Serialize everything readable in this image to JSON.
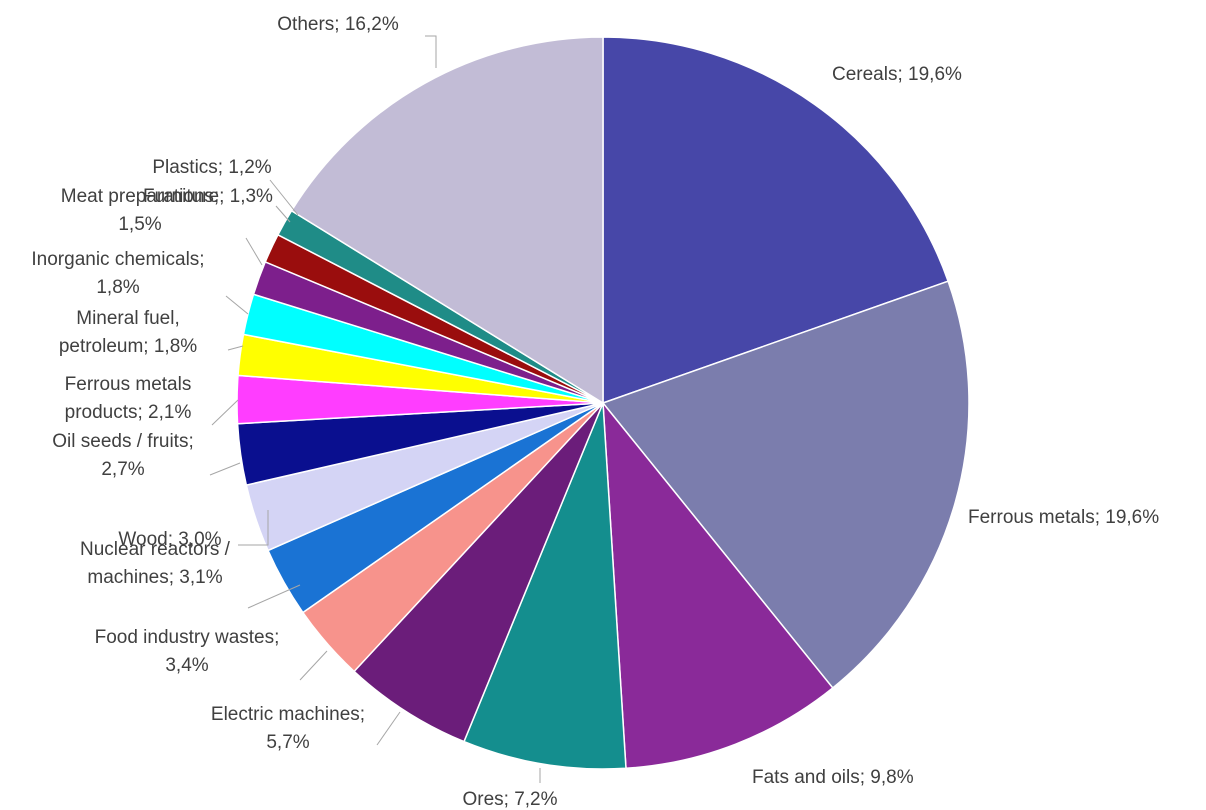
{
  "chart_data": {
    "type": "pie",
    "title": "",
    "slices": [
      {
        "name": "Cereals",
        "value": 19.6,
        "label": [
          "Cereals; 19,6%"
        ],
        "color": "#4747a8"
      },
      {
        "name": "Ferrous metals",
        "value": 19.6,
        "label": [
          "Ferrous metals; 19,6%"
        ],
        "color": "#7b7dad"
      },
      {
        "name": "Fats and oils",
        "value": 9.8,
        "label": [
          "Fats and oils; 9,8%"
        ],
        "color": "#8a2a99"
      },
      {
        "name": "Ores",
        "value": 7.2,
        "label": [
          "Ores; 7,2%"
        ],
        "color": "#148e8e"
      },
      {
        "name": "Electric machines",
        "value": 5.7,
        "label": [
          "Electric machines;",
          "5,7%"
        ],
        "color": "#6b1d7a"
      },
      {
        "name": "Food industry wastes",
        "value": 3.4,
        "label": [
          "Food industry wastes;",
          "3,4%"
        ],
        "color": "#f7938c"
      },
      {
        "name": "Nuclear reactors / machines",
        "value": 3.1,
        "label": [
          "Nuclear reactors /",
          "machines; 3,1%"
        ],
        "color": "#1a73d4"
      },
      {
        "name": "Wood",
        "value": 3.0,
        "label": [
          "Wood; 3,0%"
        ],
        "color": "#d4d4f5"
      },
      {
        "name": "Oil seeds / fruits",
        "value": 2.7,
        "label": [
          "Oil seeds  / fruits;",
          "2,7%"
        ],
        "color": "#0a0f8f"
      },
      {
        "name": "Ferrous metals products",
        "value": 2.1,
        "label": [
          "Ferrous metals",
          "products; 2,1%"
        ],
        "color": "#ff3dff"
      },
      {
        "name": "Mineral fuel, petroleum",
        "value": 1.8,
        "label": [
          "Mineral fuel,",
          "petroleum; 1,8%"
        ],
        "color": "#ffff00"
      },
      {
        "name": "Inorganic chemicals",
        "value": 1.8,
        "label": [
          "Inorganic chemicals;",
          "1,8%"
        ],
        "color": "#00ffff"
      },
      {
        "name": "Meat preparations",
        "value": 1.5,
        "label": [
          "Meat preparations;",
          "1,5%"
        ],
        "color": "#7d1f8c"
      },
      {
        "name": "Furniture",
        "value": 1.3,
        "label": [
          "Furniture; 1,3%"
        ],
        "color": "#9a0d0d"
      },
      {
        "name": "Plastics",
        "value": 1.2,
        "label": [
          "Plastics; 1,2%"
        ],
        "color": "#1f8c87"
      },
      {
        "name": "Others",
        "value": 16.2,
        "label": [
          "Others; 16,2%"
        ],
        "color": "#c2bcd6"
      }
    ]
  }
}
